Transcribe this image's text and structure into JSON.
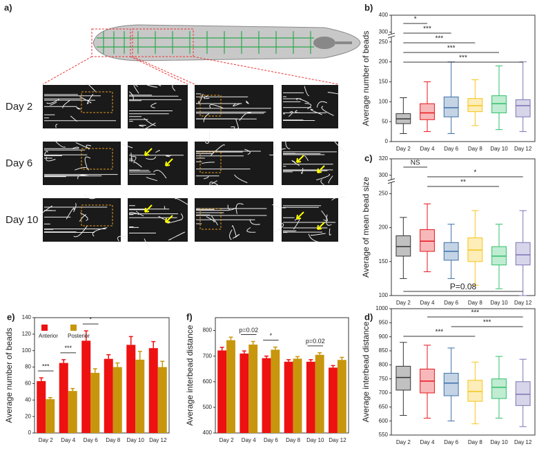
{
  "figure_a": {
    "label": "a)",
    "rows": [
      "Day 2",
      "Day 6",
      "Day 10"
    ]
  },
  "chart_data": [
    {
      "type": "box",
      "panel": "b)",
      "ylabel": "Average number of beads",
      "categories": [
        "Day 2",
        "Day 4",
        "Day 6",
        "Day 8",
        "Day 10",
        "Day 12"
      ],
      "colors": [
        "#333333",
        "#e8141a",
        "#3a6fa8",
        "#f5c518",
        "#2fbf6a",
        "#7a73b5"
      ],
      "whisker_low": [
        20,
        25,
        20,
        40,
        30,
        25
      ],
      "q1": [
        45,
        55,
        62,
        75,
        72,
        62
      ],
      "median": [
        57,
        72,
        85,
        90,
        95,
        90
      ],
      "q3": [
        70,
        95,
        112,
        108,
        115,
        105
      ],
      "whisker_high": [
        110,
        150,
        200,
        155,
        190,
        200
      ],
      "ylim": [
        0,
        400
      ],
      "ybreak": [
        260,
        290
      ],
      "yticks": [
        0,
        50,
        100,
        150,
        200,
        250,
        300,
        400
      ],
      "significance": [
        {
          "label": "*",
          "from": "Day 2",
          "to": "Day 4"
        },
        {
          "label": "***",
          "from": "Day 2",
          "to": "Day 6"
        },
        {
          "label": "***",
          "from": "Day 2",
          "to": "Day 8"
        },
        {
          "label": "***",
          "from": "Day 2",
          "to": "Day 10"
        },
        {
          "label": "***",
          "from": "Day 2",
          "to": "Day 12"
        }
      ]
    },
    {
      "type": "box",
      "panel": "c)",
      "ylabel": "Average of mean bead size",
      "categories": [
        "Day 2",
        "Day 4",
        "Day 6",
        "Day 8",
        "Day 10",
        "Day 12"
      ],
      "colors": [
        "#333333",
        "#e8141a",
        "#3a6fa8",
        "#f5c518",
        "#2fbf6a",
        "#7a73b5"
      ],
      "whisker_low": [
        125,
        135,
        125,
        115,
        110,
        100
      ],
      "q1": [
        158,
        165,
        152,
        150,
        145,
        145
      ],
      "median": [
        172,
        180,
        165,
        167,
        158,
        160
      ],
      "q3": [
        188,
        197,
        178,
        185,
        172,
        178
      ],
      "whisker_high": [
        215,
        235,
        205,
        225,
        205,
        225
      ],
      "ylim": [
        100,
        320
      ],
      "ybreak": [
        265,
        295
      ],
      "yticks": [
        100,
        150,
        200,
        250,
        300,
        320
      ],
      "significance": [
        {
          "label": "NS",
          "from": "Day 2",
          "to": "Day 4"
        },
        {
          "label": "*",
          "from": "Day 4",
          "to": "Day 12"
        },
        {
          "label": "**",
          "from": "Day 4",
          "to": "Day 10"
        },
        {
          "label": "P=0.08",
          "from": "Day 2",
          "to": "Day 12",
          "position": "bottom"
        }
      ]
    },
    {
      "type": "box",
      "panel": "d)",
      "ylabel": "Average interbead distance",
      "categories": [
        "Day 2",
        "Day 4",
        "Day 6",
        "Day 8",
        "Day 10",
        "Day 12"
      ],
      "colors": [
        "#333333",
        "#e8141a",
        "#3a6fa8",
        "#f5c518",
        "#2fbf6a",
        "#7a73b5"
      ],
      "whisker_low": [
        620,
        610,
        600,
        590,
        610,
        580
      ],
      "q1": [
        710,
        700,
        690,
        670,
        680,
        655
      ],
      "median": [
        755,
        742,
        735,
        705,
        720,
        695
      ],
      "q3": [
        795,
        785,
        770,
        745,
        750,
        740
      ],
      "whisker_high": [
        880,
        870,
        860,
        810,
        830,
        820
      ],
      "ylim": [
        550,
        1000
      ],
      "yticks": [
        550,
        600,
        650,
        700,
        750,
        800,
        850,
        900,
        950,
        1000
      ],
      "significance": [
        {
          "label": "***",
          "from": "Day 4",
          "to": "Day 12"
        },
        {
          "label": "***",
          "from": "Day 6",
          "to": "Day 12"
        },
        {
          "label": "***",
          "from": "Day 2",
          "to": "Day 8"
        }
      ]
    },
    {
      "type": "bar",
      "panel": "e)",
      "ylabel": "Average number of beads",
      "legend": true,
      "categories": [
        "Day 2",
        "Day 4",
        "Day 6",
        "Day 8",
        "Day 10",
        "Day 12"
      ],
      "series": [
        {
          "name": "Anterior",
          "color": "#ee1111",
          "values": [
            63,
            85,
            112,
            90,
            107,
            103
          ],
          "errors": [
            4,
            4,
            12,
            5,
            10,
            8
          ]
        },
        {
          "name": "Posterior",
          "color": "#c8960c",
          "values": [
            41,
            51,
            73,
            80,
            89,
            80
          ],
          "errors": [
            2,
            3,
            5,
            5,
            10,
            7
          ]
        }
      ],
      "ylim": [
        0,
        140
      ],
      "yticks": [
        0,
        20,
        40,
        60,
        80,
        100,
        120,
        140
      ],
      "significance": [
        {
          "label": "***",
          "category": "Day 2"
        },
        {
          "label": "***",
          "category": "Day 4"
        },
        {
          "label": "*",
          "category": "Day 6"
        }
      ]
    },
    {
      "type": "bar",
      "panel": "f)",
      "ylabel": "Average interbead distance",
      "legend": false,
      "categories": [
        "Day 2",
        "Day 4",
        "Day 6",
        "Day 8",
        "Day 10",
        "Day 12"
      ],
      "series": [
        {
          "name": "Anterior",
          "color": "#ee1111",
          "values": [
            722,
            710,
            692,
            678,
            678,
            655
          ],
          "errors": [
            12,
            10,
            8,
            8,
            8,
            8
          ]
        },
        {
          "name": "Posterior",
          "color": "#c8960c",
          "values": [
            762,
            745,
            725,
            690,
            705,
            685
          ],
          "errors": [
            12,
            12,
            10,
            8,
            8,
            10
          ]
        }
      ],
      "ylim": [
        400,
        850
      ],
      "yticks": [
        400,
        500,
        600,
        700,
        800
      ],
      "significance": [
        {
          "label": "p=0.02",
          "category": "Day 4"
        },
        {
          "label": "*",
          "category": "Day 6"
        },
        {
          "label": "p=0.02",
          "category": "Day 10"
        }
      ]
    }
  ]
}
